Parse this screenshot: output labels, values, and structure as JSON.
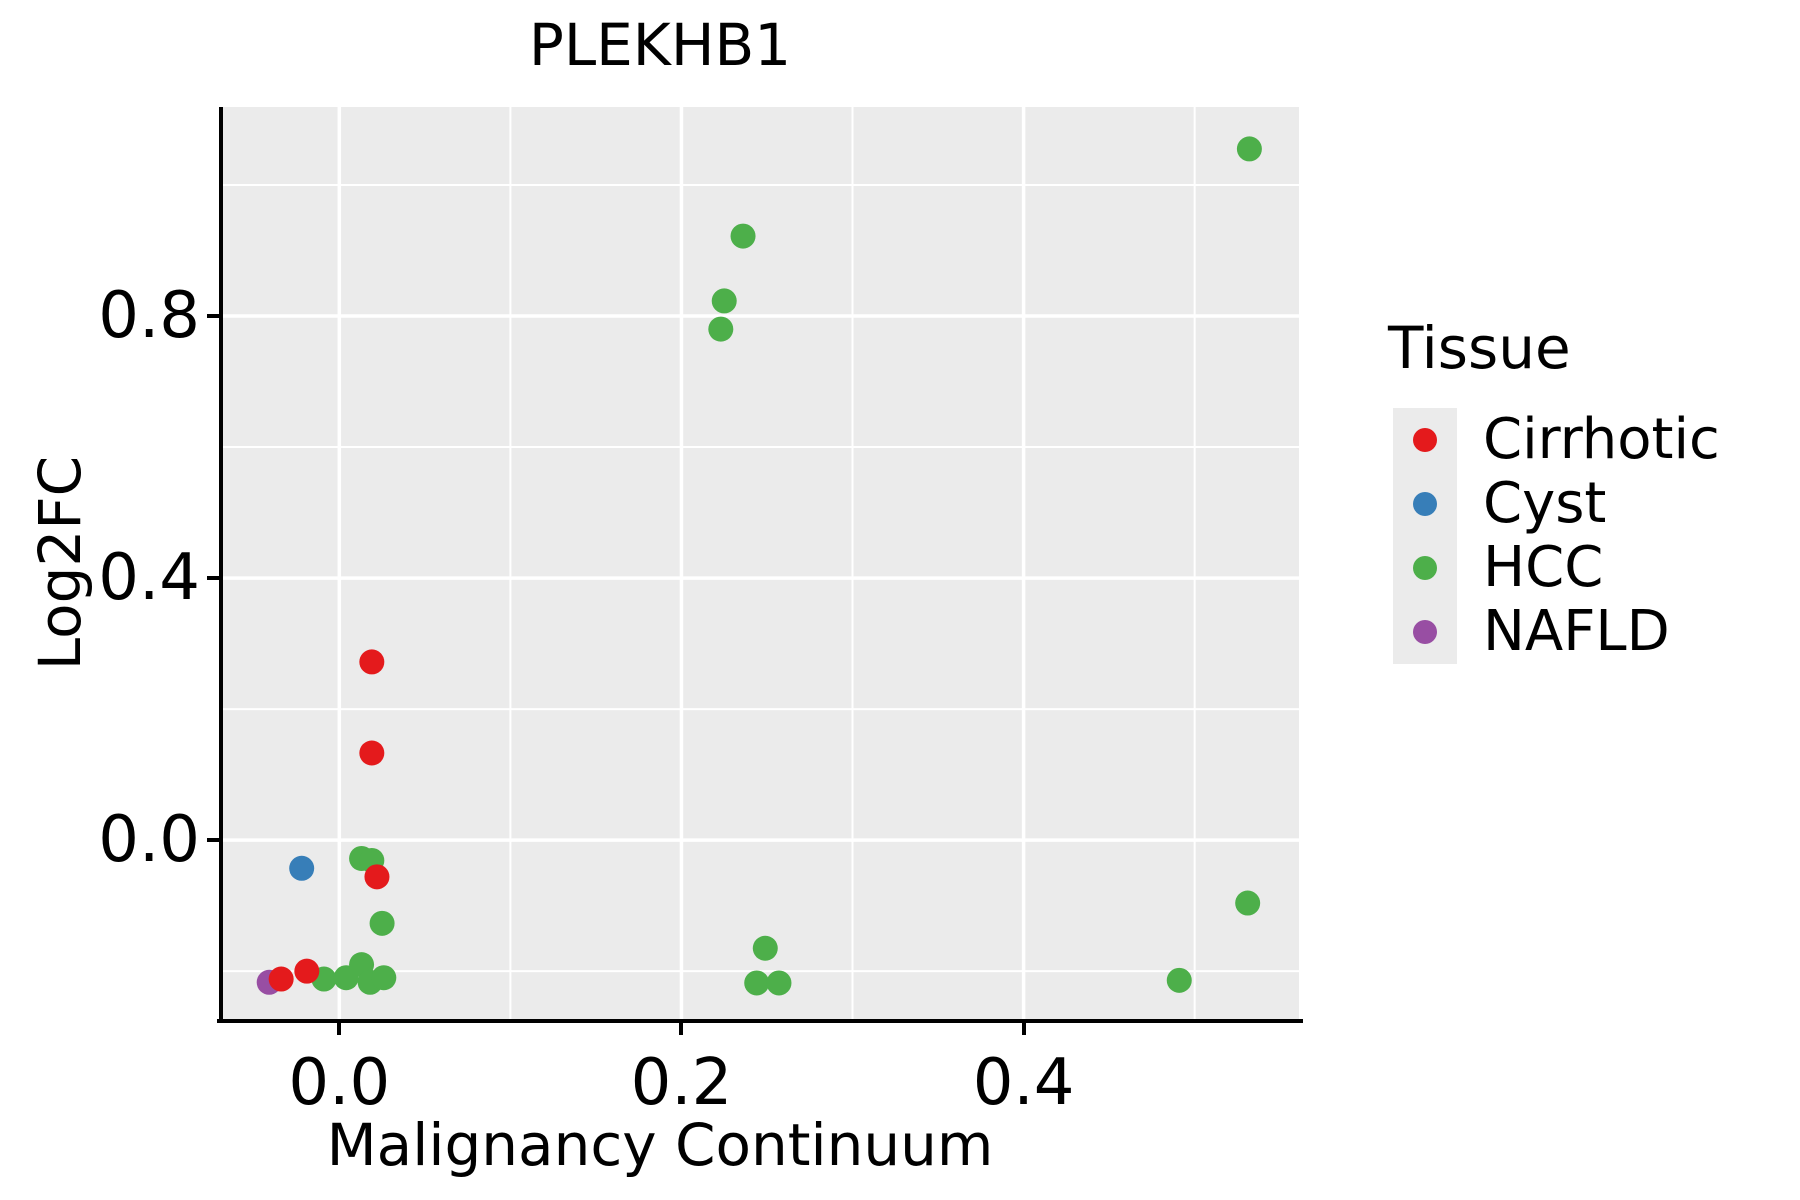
{
  "chart_data": {
    "type": "scatter",
    "title": "PLEKHB1",
    "xlabel": "Malignancy Continuum",
    "ylabel": "Log2FC",
    "xlim": [
      -0.068,
      0.561
    ],
    "ylim": [
      -0.273,
      1.119
    ],
    "x_ticks": [
      0.0,
      0.2,
      0.4
    ],
    "y_ticks": [
      0.0,
      0.4,
      0.8
    ],
    "x_minor_gridlines": [
      0.1,
      0.3,
      0.5
    ],
    "y_minor_gridlines": [
      -0.2,
      0.2,
      0.6,
      1.0
    ],
    "grid": "white major and minor gridlines on gray panel",
    "point_radius_px": 12.5,
    "colors": {
      "panel_background": "#ebebeb",
      "gridline": "#ffffff",
      "axis_line": "#000000",
      "text": "#000000"
    },
    "legend": {
      "title": "Tissue",
      "position": "right"
    },
    "series": [
      {
        "name": "Cirrhotic",
        "color": "#e41a1c",
        "points": [
          [
            0.019,
            0.272
          ],
          [
            0.019,
            0.133
          ],
          [
            0.022,
            -0.056
          ],
          [
            -0.034,
            -0.212
          ],
          [
            -0.019,
            -0.2
          ]
        ]
      },
      {
        "name": "Cyst",
        "color": "#377eb8",
        "points": [
          [
            -0.022,
            -0.043
          ]
        ]
      },
      {
        "name": "HCC",
        "color": "#4daf4a",
        "points": [
          [
            0.532,
            1.055
          ],
          [
            0.236,
            0.922
          ],
          [
            0.225,
            0.823
          ],
          [
            0.223,
            0.78
          ],
          [
            0.531,
            -0.096
          ],
          [
            0.491,
            -0.214
          ],
          [
            0.249,
            -0.165
          ],
          [
            0.244,
            -0.218
          ],
          [
            0.257,
            -0.218
          ],
          [
            0.013,
            -0.028
          ],
          [
            0.019,
            -0.031
          ],
          [
            0.025,
            -0.127
          ],
          [
            -0.009,
            -0.212
          ],
          [
            0.004,
            -0.21
          ],
          [
            0.013,
            -0.19
          ],
          [
            0.018,
            -0.217
          ],
          [
            0.026,
            -0.21
          ]
        ]
      },
      {
        "name": "NAFLD",
        "color": "#984ea3",
        "points": [
          [
            -0.041,
            -0.217
          ]
        ]
      }
    ]
  }
}
